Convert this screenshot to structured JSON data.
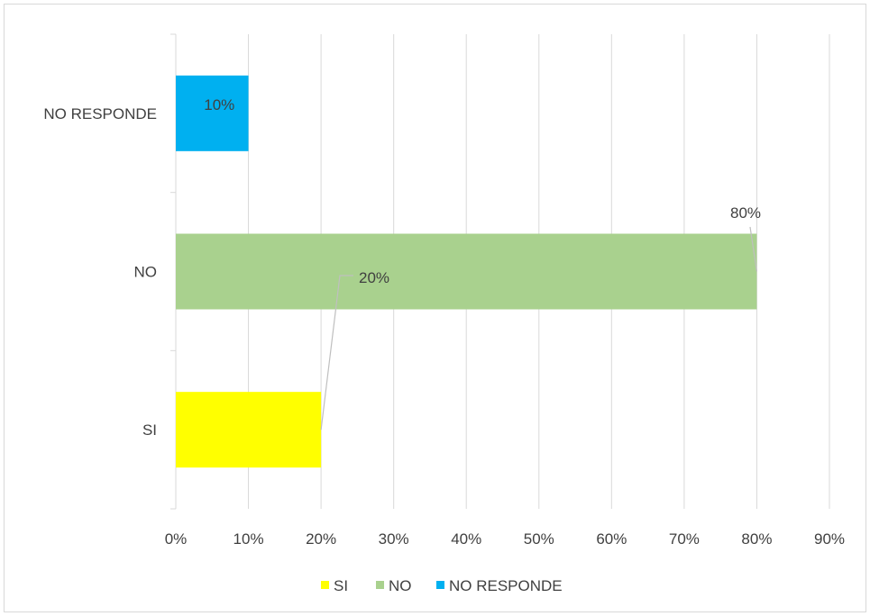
{
  "chart_data": {
    "type": "bar",
    "orientation": "horizontal",
    "categories": [
      "SI",
      "NO",
      "NO RESPONDE"
    ],
    "values": [
      20,
      80,
      10
    ],
    "value_labels": [
      "20%",
      "80%",
      "10%"
    ],
    "colors": [
      "#ffff00",
      "#a9d18e",
      "#00b0f0"
    ],
    "xlim": [
      0,
      90
    ],
    "x_ticks": [
      "0%",
      "10%",
      "20%",
      "30%",
      "40%",
      "50%",
      "60%",
      "70%",
      "80%",
      "90%"
    ],
    "grid": "vertical",
    "legend": {
      "position": "bottom",
      "entries": [
        "SI",
        "NO",
        "NO RESPONDE"
      ]
    }
  }
}
